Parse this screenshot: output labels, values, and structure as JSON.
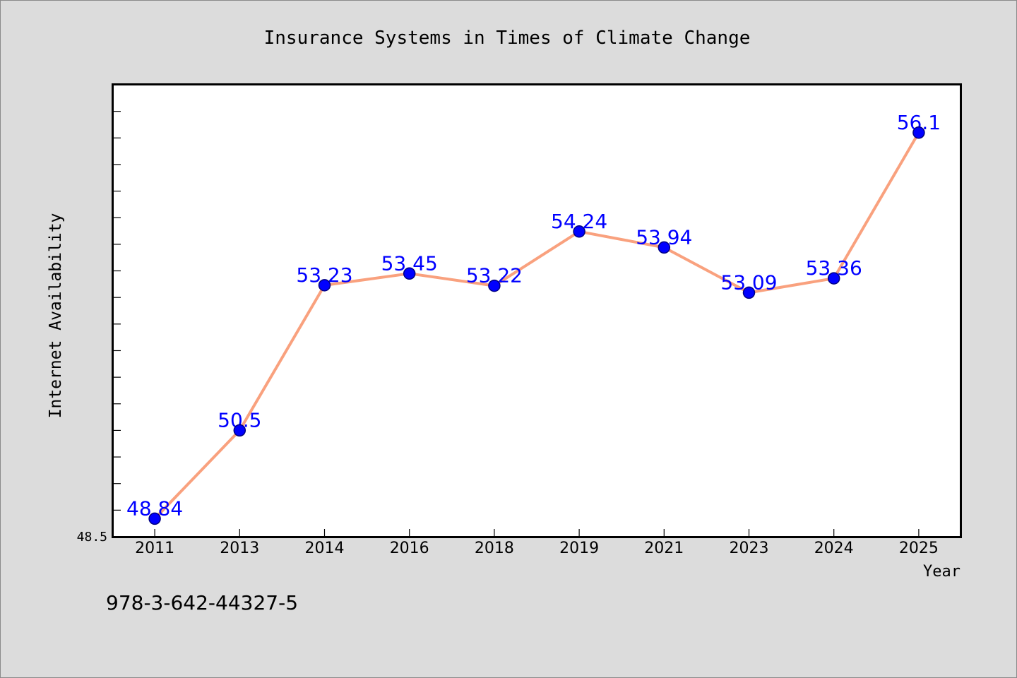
{
  "page": {
    "background_color": "#dcdcdc",
    "plot_background_color": "#ffffff"
  },
  "chart_data": {
    "type": "line",
    "title": "Insurance Systems in Times of Climate Change",
    "xlabel": "Year",
    "ylabel": "Internet Availability",
    "categories": [
      "2011",
      "2013",
      "2014",
      "2016",
      "2018",
      "2019",
      "2021",
      "2023",
      "2024",
      "2025"
    ],
    "series": [
      {
        "values": [
          48.84,
          50.5,
          53.23,
          53.45,
          53.22,
          54.24,
          53.94,
          53.09,
          53.36,
          56.1
        ],
        "line_color": "#f9a17e",
        "marker_color": "#0000ff"
      }
    ],
    "data_label_color": "#0000ff",
    "ylim": [
      48.5,
      57.0
    ],
    "y_ticks": [
      {
        "value": 48.5,
        "label": "48.5"
      }
    ],
    "y_minor_tick_step": 0.5,
    "grid": false,
    "legend": "none"
  },
  "footer": {
    "isbn": "978-3-642-44327-5"
  }
}
